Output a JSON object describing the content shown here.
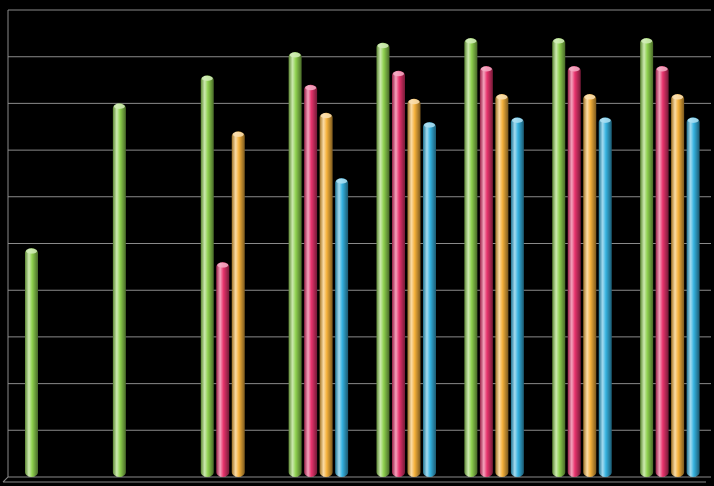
{
  "chart_data": {
    "type": "bar",
    "categories": [
      "",
      "",
      "",
      "",
      "",
      "",
      "",
      ""
    ],
    "series": [
      {
        "color": "#8fd14f",
        "values": [
          4.9,
          8.0,
          8.6,
          9.1,
          9.3,
          9.4,
          9.4,
          9.4
        ]
      },
      {
        "color": "#e8336d",
        "values": [
          null,
          null,
          4.6,
          8.4,
          8.7,
          8.8,
          8.8,
          8.8
        ]
      },
      {
        "color": "#f5b13b",
        "values": [
          null,
          null,
          7.4,
          7.8,
          8.1,
          8.2,
          8.2,
          8.2
        ]
      },
      {
        "color": "#35b2e0",
        "values": [
          null,
          null,
          null,
          6.4,
          7.6,
          7.7,
          7.7,
          7.7
        ]
      }
    ],
    "ylim": [
      0,
      10
    ],
    "grid": true,
    "legend": "none",
    "title": "",
    "xlabel": "",
    "ylabel": ""
  }
}
